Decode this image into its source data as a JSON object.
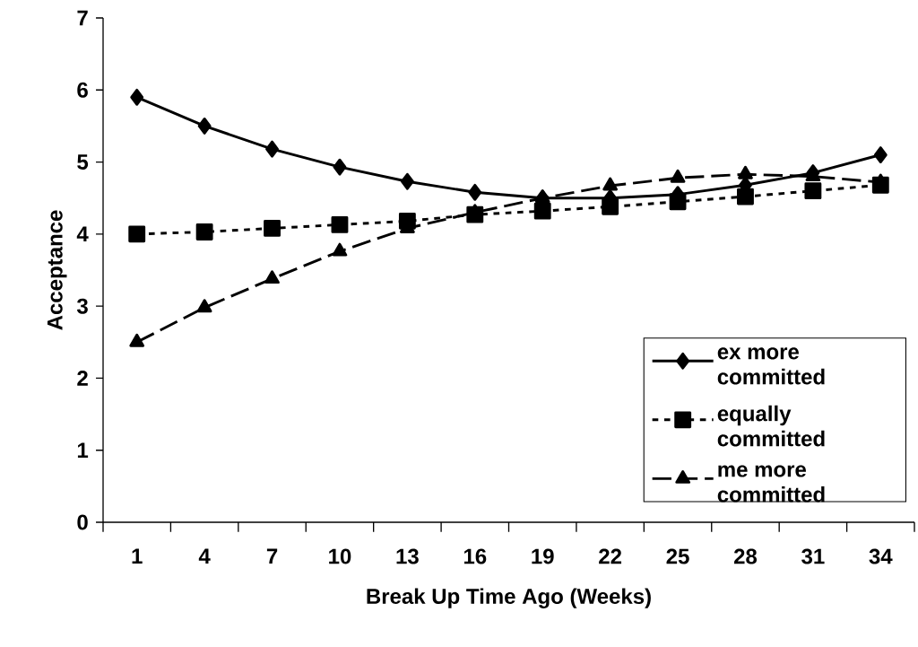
{
  "chart_data": {
    "type": "line",
    "xlabel": "Break Up Time Ago (Weeks)",
    "ylabel": "Acceptance",
    "categories": [
      "1",
      "4",
      "7",
      "10",
      "13",
      "16",
      "19",
      "22",
      "25",
      "28",
      "31",
      "34"
    ],
    "ylim": [
      0,
      7
    ],
    "yticks": [
      0,
      1,
      2,
      3,
      4,
      5,
      6,
      7
    ],
    "legend": "bottom right",
    "series": [
      {
        "name": "ex more committed",
        "color": "#000000",
        "marker": "diamond",
        "line_style": "solid",
        "values": [
          5.9,
          5.5,
          5.18,
          4.93,
          4.73,
          4.58,
          4.5,
          4.5,
          4.55,
          4.68,
          4.85,
          5.1
        ]
      },
      {
        "name": "equally committed",
        "color": "#000000",
        "marker": "square",
        "line_style": "dotted",
        "values": [
          4.0,
          4.03,
          4.08,
          4.13,
          4.18,
          4.27,
          4.32,
          4.38,
          4.45,
          4.52,
          4.6,
          4.68
        ]
      },
      {
        "name": "me more committed",
        "color": "#000000",
        "marker": "triangle",
        "line_style": "dashed",
        "values": [
          2.5,
          2.98,
          3.38,
          3.76,
          4.08,
          4.3,
          4.5,
          4.67,
          4.78,
          4.83,
          4.8,
          4.72
        ]
      }
    ]
  }
}
